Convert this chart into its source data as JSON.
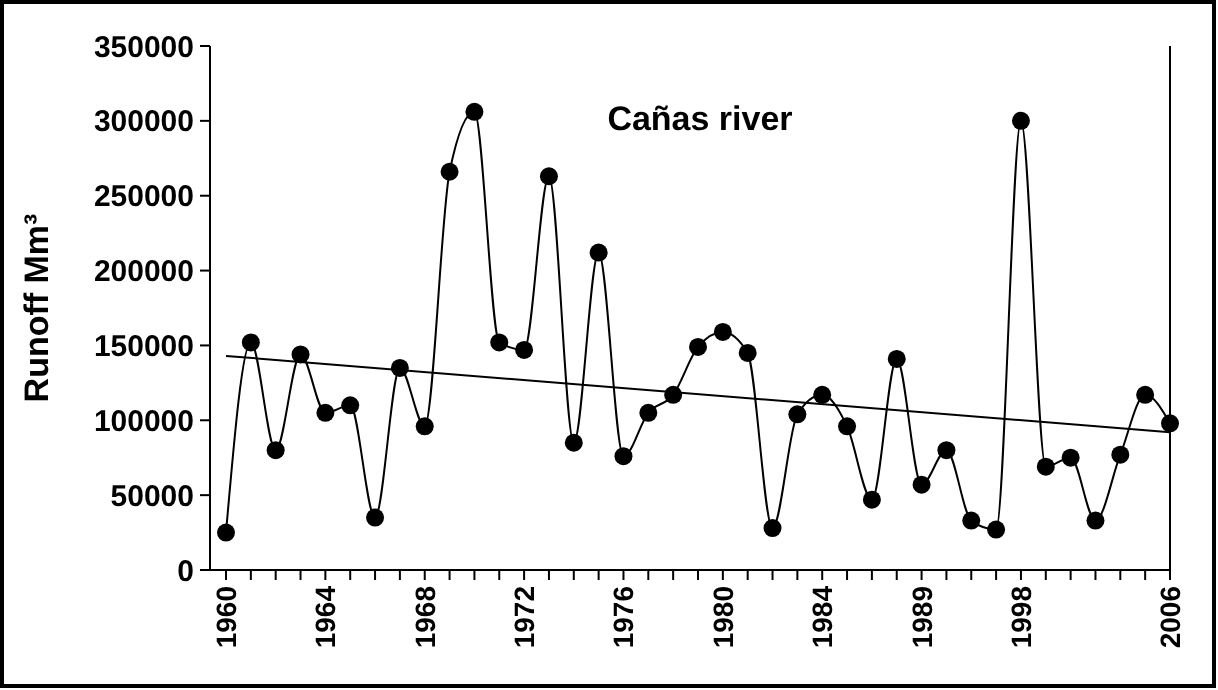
{
  "chart_data": {
    "type": "line",
    "title": "Cañas river",
    "ylabel": "Runoff Mm³",
    "categories": [
      "1960",
      null,
      null,
      null,
      "1964",
      null,
      null,
      null,
      "1968",
      null,
      null,
      null,
      "1972",
      null,
      null,
      null,
      "1976",
      null,
      null,
      null,
      "1980",
      null,
      null,
      null,
      "1984",
      null,
      null,
      null,
      "1989",
      null,
      null,
      null,
      "1998",
      null,
      null,
      null,
      null,
      null,
      "2006"
    ],
    "series": [
      {
        "color": "#000000",
        "marker": "circle",
        "values": [
          25000,
          152000,
          80000,
          144000,
          105000,
          110000,
          35000,
          135000,
          96000,
          266000,
          306000,
          152000,
          147000,
          263000,
          85000,
          212000,
          76000,
          105000,
          117000,
          149000,
          159000,
          145000,
          28000,
          104000,
          117000,
          96000,
          47000,
          141000,
          57000,
          80000,
          33000,
          27000,
          300000,
          69000,
          75000,
          33000,
          77000,
          117000,
          98000
        ]
      },
      {
        "color": "#000000",
        "marker": "none",
        "values": [
          143000,
          null,
          null,
          null,
          null,
          null,
          null,
          null,
          null,
          null,
          null,
          null,
          null,
          null,
          null,
          null,
          null,
          null,
          null,
          null,
          null,
          null,
          null,
          null,
          null,
          null,
          null,
          null,
          null,
          null,
          null,
          null,
          null,
          null,
          null,
          null,
          null,
          null,
          92000
        ]
      }
    ],
    "ylim": [
      0,
      350000
    ],
    "yticks": [
      0,
      50000,
      100000,
      150000,
      200000,
      250000,
      300000,
      350000
    ],
    "grid": false
  }
}
